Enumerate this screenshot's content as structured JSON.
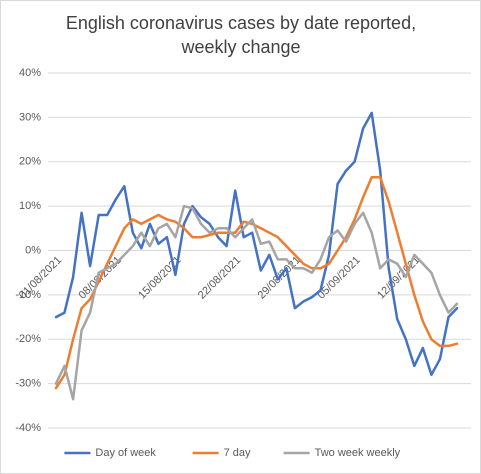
{
  "chart_data": {
    "type": "line",
    "title": "English coronavirus cases by date reported, weekly change",
    "categories": [
      "01/08/2021",
      null,
      null,
      null,
      null,
      null,
      null,
      "08/08/2021",
      null,
      null,
      null,
      null,
      null,
      null,
      "15/08/2021",
      null,
      null,
      null,
      null,
      null,
      null,
      "22/08/2021",
      null,
      null,
      null,
      null,
      null,
      null,
      "29/08/2021",
      null,
      null,
      null,
      null,
      null,
      null,
      "05/09/2021",
      null,
      null,
      null,
      null,
      null,
      null,
      "12/09/2021",
      null,
      null,
      null,
      null,
      null
    ],
    "series": [
      {
        "name": "Day of week",
        "color": "#4472c4",
        "values": [
          -15,
          -14,
          -6,
          8.5,
          -3.5,
          8,
          8,
          11.5,
          14.5,
          4,
          0.5,
          6,
          1.5,
          3,
          -5.5,
          6,
          10,
          7.5,
          6,
          3,
          1,
          13.5,
          3,
          4,
          -4.5,
          -1,
          -6.5,
          -4,
          -13,
          -11.5,
          -10.5,
          -9,
          -1,
          15,
          18,
          20,
          27.5,
          31,
          18,
          -4,
          -15.5,
          -20,
          -26,
          -22,
          -28,
          -24.5,
          -15,
          -13
        ]
      },
      {
        "name": "7 day",
        "color": "#ed7d31",
        "values": [
          -31,
          -28,
          -20,
          -13,
          -11,
          -7,
          -3,
          1,
          5,
          7,
          6,
          7,
          8,
          7,
          6.5,
          5,
          3,
          3,
          3.5,
          4,
          4,
          4,
          6.5,
          6,
          5,
          4,
          3,
          1,
          -1,
          -3,
          -4,
          -4,
          -3,
          0,
          3,
          7,
          12,
          16.5,
          16.5,
          11,
          4,
          -3,
          -10,
          -16,
          -20,
          -21.5,
          -21.5,
          -21
        ]
      },
      {
        "name": "Two week weekly",
        "color": "#a5a5a5",
        "values": [
          -30,
          -26,
          -33.5,
          -18,
          -14,
          -5,
          -4,
          -3,
          -1,
          1,
          4,
          1,
          5,
          6,
          3,
          10,
          9.5,
          6,
          4,
          5,
          5,
          3,
          5,
          7,
          1.5,
          2,
          -2,
          -2,
          -4,
          -4,
          -5,
          -2,
          3,
          4.5,
          2,
          6,
          8.5,
          4,
          -4,
          -2,
          -3,
          -6,
          -1,
          -3,
          -5,
          -10,
          -14,
          -12
        ]
      }
    ],
    "ylim": [
      -40,
      40
    ],
    "yticks": [
      {
        "value": -40,
        "label": "-40%"
      },
      {
        "value": -30,
        "label": "-30%"
      },
      {
        "value": -20,
        "label": "-20%"
      },
      {
        "value": -10,
        "label": "-10%"
      },
      {
        "value": 0,
        "label": "0%"
      },
      {
        "value": 10,
        "label": "10%"
      },
      {
        "value": 20,
        "label": "20%"
      },
      {
        "value": 30,
        "label": "30%"
      },
      {
        "value": 40,
        "label": "40%"
      }
    ],
    "grid": true,
    "legend": "bottom"
  }
}
